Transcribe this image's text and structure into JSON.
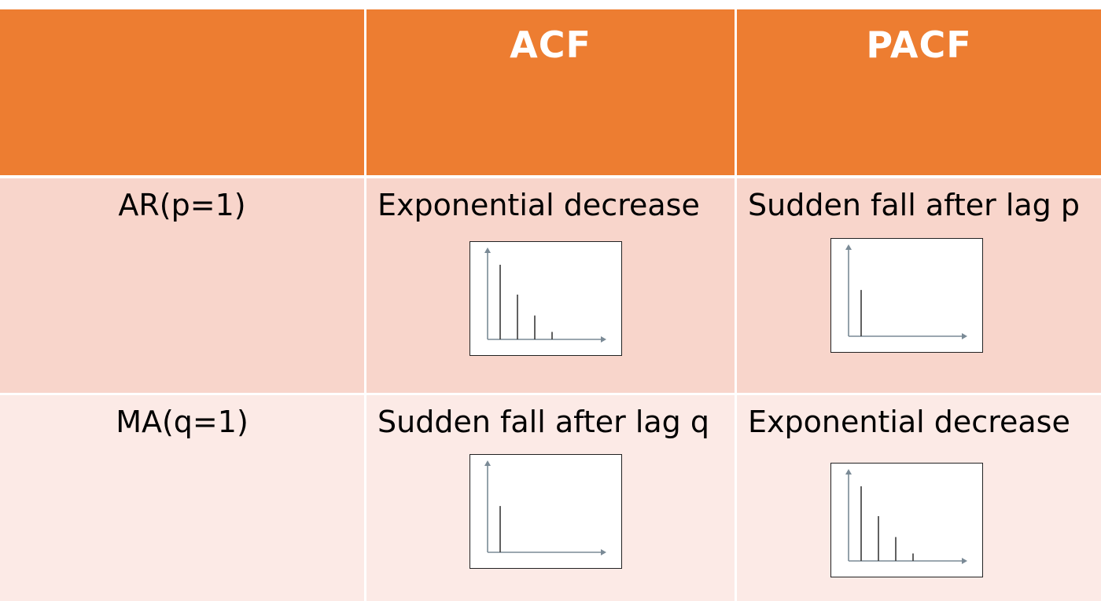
{
  "header": {
    "col1": "",
    "col2": "ACF",
    "col3": "PACF"
  },
  "rows": [
    {
      "label": "AR(p=1)",
      "acf_text": "Exponential decrease",
      "pacf_text": "Sudden fall after lag p",
      "acf_plot_bars": [
        1.0,
        0.6,
        0.32,
        0.1
      ],
      "pacf_plot_bars": [
        0.62
      ]
    },
    {
      "label": "MA(q=1)",
      "acf_text": "Sudden fall after lag q",
      "pacf_text": "Exponential decrease",
      "acf_plot_bars": [
        0.62
      ],
      "pacf_plot_bars": [
        1.0,
        0.6,
        0.32,
        0.1
      ]
    }
  ],
  "colors": {
    "header": "#ED7D31",
    "row1": "#F8D5CB",
    "row2": "#FCEAE6",
    "axis": "#7a8a96",
    "bar": "#3a3a3a"
  }
}
